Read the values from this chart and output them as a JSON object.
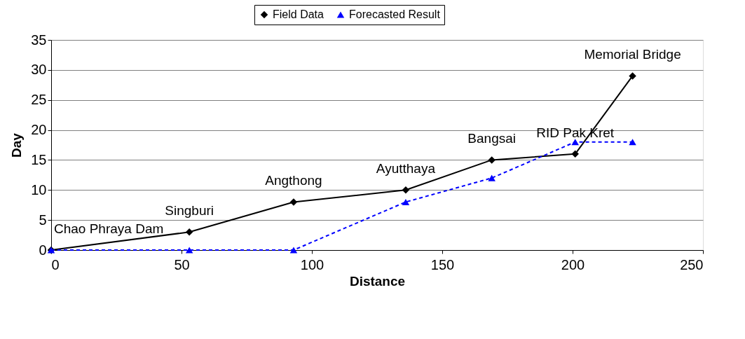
{
  "chart_data": {
    "type": "line",
    "xlabel": "Distance",
    "ylabel": "Day",
    "xlim": [
      0,
      250
    ],
    "xticks": [
      0,
      50,
      100,
      150,
      200,
      250
    ],
    "ylim": [
      0,
      35
    ],
    "yticks": [
      0,
      5,
      10,
      15,
      20,
      25,
      30,
      35
    ],
    "grid": "y",
    "legend": "top",
    "series": [
      {
        "name": "Field Data",
        "color": "#000000",
        "marker": "diamond",
        "line_style": "solid",
        "x": [
          0,
          53,
          93,
          136,
          169,
          201,
          223
        ],
        "values": [
          0,
          3,
          8,
          10,
          15,
          16,
          29
        ]
      },
      {
        "name": "Forecasted Result",
        "color": "#0000ff",
        "marker": "triangle",
        "line_style": "dashed",
        "x": [
          0,
          53,
          93,
          136,
          169,
          201,
          223
        ],
        "values": [
          0,
          0,
          0,
          8,
          12,
          18,
          18
        ]
      }
    ],
    "annotations": [
      {
        "text": "Chao Phraya Dam",
        "x": 0,
        "y": 0
      },
      {
        "text": "Singburi",
        "x": 53,
        "y": 3
      },
      {
        "text": "Angthong",
        "x": 93,
        "y": 8
      },
      {
        "text": "Ayutthaya",
        "x": 136,
        "y": 10
      },
      {
        "text": "Bangsai",
        "x": 169,
        "y": 15
      },
      {
        "text": "RID Pak Kret",
        "x": 201,
        "y": 16
      },
      {
        "text": "Memorial Bridge",
        "x": 223,
        "y": 29
      }
    ]
  }
}
